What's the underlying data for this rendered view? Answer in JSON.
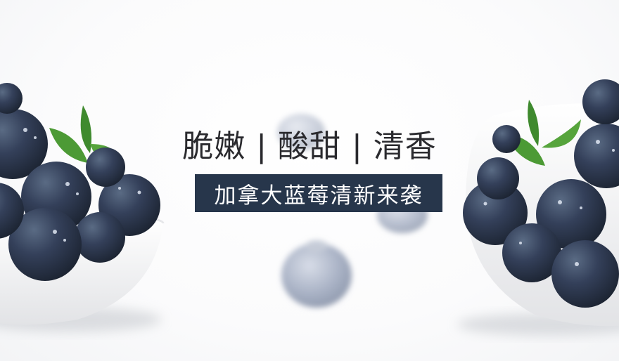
{
  "headline": "脆嫩 | 酸甜 | 清香",
  "tagline": "加拿大蓝莓清新来袭",
  "colors": {
    "tagline_bg": "#27364b",
    "berry": "#2f3a4c",
    "leaf": "#3f8a2e",
    "bowl": "#f4f4f4"
  }
}
